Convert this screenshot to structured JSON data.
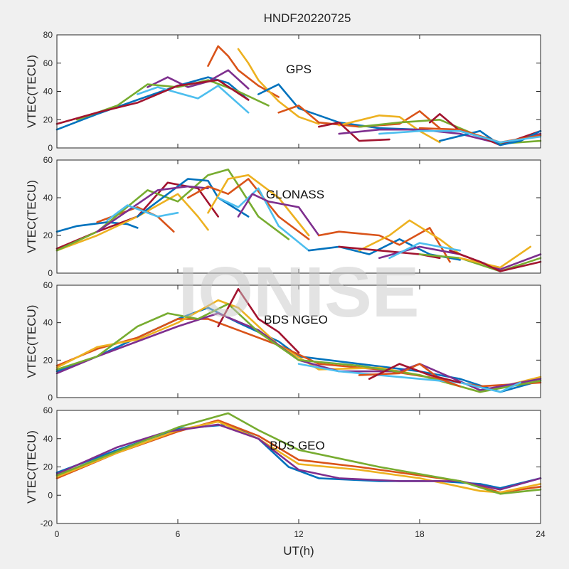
{
  "figure": {
    "title": "HNDF20220725",
    "xlabel": "UT(h)",
    "watermark": "IONISE",
    "ylabel": "VTEC(TECU)"
  },
  "colors": {
    "background": "#f0f0f0",
    "axes_bg": "#ffffff",
    "series": [
      "#0072BD",
      "#D95319",
      "#EDB120",
      "#7E2F8E",
      "#77AC30",
      "#4DBEEE",
      "#A2142F"
    ]
  },
  "chart_data": [
    {
      "type": "line",
      "label": "GPS",
      "ylabel": "VTEC(TECU)",
      "xlim": [
        0,
        24
      ],
      "ylim": [
        0,
        80
      ],
      "yticks": [
        0,
        20,
        40,
        60,
        80
      ],
      "xticks": [
        0,
        6,
        12,
        18,
        24
      ],
      "series": [
        {
          "color": "#0072BD",
          "x": [
            0,
            2,
            4,
            6,
            7.5,
            8.5,
            9.5
          ],
          "y": [
            13,
            24,
            34,
            44,
            50,
            46,
            34
          ]
        },
        {
          "color": "#D95319",
          "x": [
            7.5,
            8,
            8.5,
            9,
            10,
            11
          ],
          "y": [
            58,
            72,
            65,
            55,
            44,
            36
          ]
        },
        {
          "color": "#EDB120",
          "x": [
            9,
            9.5,
            10,
            11,
            12,
            13
          ],
          "y": [
            70,
            60,
            48,
            33,
            22,
            17
          ]
        },
        {
          "color": "#7E2F8E",
          "x": [
            4.5,
            5.5,
            6.5,
            7.5,
            8.5,
            9.5
          ],
          "y": [
            43,
            50,
            43,
            47,
            55,
            42
          ]
        },
        {
          "color": "#77AC30",
          "x": [
            1,
            3,
            4.5,
            6,
            7.5,
            9,
            10.5
          ],
          "y": [
            20,
            30,
            45,
            43,
            48,
            40,
            30
          ]
        },
        {
          "color": "#4DBEEE",
          "x": [
            4,
            5,
            6,
            7,
            8,
            9.5
          ],
          "y": [
            38,
            43,
            39,
            35,
            44,
            25
          ]
        },
        {
          "color": "#A2142F",
          "x": [
            0,
            2,
            4,
            6,
            8,
            9.5
          ],
          "y": [
            17,
            25,
            32,
            44,
            48,
            34
          ]
        },
        {
          "color": "#0072BD",
          "x": [
            10,
            11,
            12,
            14,
            16,
            18
          ],
          "y": [
            38,
            45,
            28,
            18,
            14,
            13
          ]
        },
        {
          "color": "#D95319",
          "x": [
            11,
            12,
            13,
            15,
            17,
            18,
            19
          ],
          "y": [
            25,
            30,
            18,
            15,
            17,
            26,
            14
          ]
        },
        {
          "color": "#EDB120",
          "x": [
            14,
            16,
            17,
            18,
            19
          ],
          "y": [
            16,
            23,
            22,
            12,
            4
          ]
        },
        {
          "color": "#A2142F",
          "x": [
            13,
            14,
            15,
            16.5
          ],
          "y": [
            15,
            18,
            5,
            6
          ]
        },
        {
          "color": "#7E2F8E",
          "x": [
            14,
            16,
            18,
            20,
            22,
            24
          ],
          "y": [
            10,
            13,
            13,
            10,
            3,
            10
          ]
        },
        {
          "color": "#77AC30",
          "x": [
            15,
            17,
            19,
            21,
            22,
            24
          ],
          "y": [
            15,
            18,
            20,
            8,
            3,
            5
          ]
        },
        {
          "color": "#A2142F",
          "x": [
            18.5,
            19,
            20,
            21,
            22,
            24
          ],
          "y": [
            18,
            24,
            12,
            8,
            2,
            12
          ]
        },
        {
          "color": "#0072BD",
          "x": [
            19,
            21,
            22,
            23,
            24
          ],
          "y": [
            5,
            12,
            2,
            5,
            12
          ]
        },
        {
          "color": "#D95319",
          "x": [
            18,
            20,
            22,
            24
          ],
          "y": [
            14,
            13,
            4,
            9
          ]
        },
        {
          "color": "#4DBEEE",
          "x": [
            16,
            18,
            20,
            22,
            24
          ],
          "y": [
            10,
            12,
            12,
            4,
            8
          ]
        }
      ]
    },
    {
      "type": "line",
      "label": "GLONASS",
      "ylabel": "VTEC(TECU)",
      "xlim": [
        0,
        24
      ],
      "ylim": [
        0,
        60
      ],
      "yticks": [
        0,
        20,
        40,
        60
      ],
      "xticks": [
        0,
        6,
        12,
        18,
        24
      ],
      "series": [
        {
          "color": "#0072BD",
          "x": [
            0,
            1,
            2.5,
            3.5,
            4
          ],
          "y": [
            22,
            25,
            27,
            26,
            24
          ]
        },
        {
          "color": "#D95319",
          "x": [
            2,
            4,
            5,
            5.8
          ],
          "y": [
            27,
            35,
            30,
            22
          ]
        },
        {
          "color": "#A2142F",
          "x": [
            0,
            2,
            4,
            5.5,
            7,
            8
          ],
          "y": [
            13,
            22,
            30,
            48,
            45,
            30
          ]
        },
        {
          "color": "#EDB120",
          "x": [
            0,
            2,
            4,
            6,
            7,
            7.5
          ],
          "y": [
            12,
            20,
            30,
            42,
            30,
            23
          ]
        },
        {
          "color": "#77AC30",
          "x": [
            0,
            2,
            4.5,
            6,
            7.5,
            8.5,
            10,
            11.5
          ],
          "y": [
            12,
            22,
            44,
            38,
            52,
            55,
            30,
            18
          ]
        },
        {
          "color": "#0072BD",
          "x": [
            4,
            5.5,
            6.5,
            7.5,
            8,
            9.5
          ],
          "y": [
            30,
            42,
            50,
            49,
            40,
            30
          ]
        },
        {
          "color": "#7E2F8E",
          "x": [
            2,
            3.5,
            5,
            6.5,
            7.5
          ],
          "y": [
            22,
            33,
            44,
            46,
            45
          ]
        },
        {
          "color": "#4DBEEE",
          "x": [
            2.5,
            3.5,
            5,
            6
          ],
          "y": [
            28,
            36,
            30,
            32
          ]
        },
        {
          "color": "#D95319",
          "x": [
            6.5,
            7.5,
            8.5,
            9.5,
            11,
            12.5
          ],
          "y": [
            40,
            46,
            42,
            50,
            30,
            18
          ]
        },
        {
          "color": "#EDB120",
          "x": [
            7.5,
            8.5,
            9.5,
            11,
            12.5
          ],
          "y": [
            32,
            50,
            52,
            40,
            20
          ]
        },
        {
          "color": "#4DBEEE",
          "x": [
            8,
            9,
            10,
            11,
            12.5
          ],
          "y": [
            40,
            35,
            45,
            25,
            12
          ]
        },
        {
          "color": "#7E2F8E",
          "x": [
            9,
            9.7,
            10.5,
            12,
            13
          ],
          "y": [
            30,
            42,
            38,
            35,
            20
          ]
        },
        {
          "color": "#0072BD",
          "x": [
            12.5,
            14,
            15.5,
            17,
            18.5,
            20
          ],
          "y": [
            12,
            14,
            10,
            18,
            10,
            7
          ]
        },
        {
          "color": "#D95319",
          "x": [
            13,
            14,
            16,
            17,
            18.5,
            19.5
          ],
          "y": [
            20,
            22,
            20,
            15,
            24,
            6
          ]
        },
        {
          "color": "#EDB120",
          "x": [
            15,
            16.5,
            17.5,
            19,
            20
          ],
          "y": [
            12,
            20,
            28,
            18,
            10
          ]
        },
        {
          "color": "#A2142F",
          "x": [
            14,
            16,
            18,
            19
          ],
          "y": [
            14,
            12,
            10,
            8
          ]
        },
        {
          "color": "#7E2F8E",
          "x": [
            16,
            18,
            20,
            22,
            24
          ],
          "y": [
            8,
            14,
            10,
            2,
            10
          ]
        },
        {
          "color": "#77AC30",
          "x": [
            18,
            20,
            22,
            24
          ],
          "y": [
            10,
            8,
            1,
            8
          ]
        },
        {
          "color": "#EDB120",
          "x": [
            20,
            22,
            23.5
          ],
          "y": [
            8,
            3,
            14
          ]
        },
        {
          "color": "#A2142F",
          "x": [
            19.5,
            21,
            22,
            24
          ],
          "y": [
            12,
            6,
            1,
            6
          ]
        },
        {
          "color": "#4DBEEE",
          "x": [
            16.5,
            18,
            20
          ],
          "y": [
            8,
            16,
            12
          ]
        }
      ]
    },
    {
      "type": "line",
      "label": "BDS NGEO",
      "ylabel": "VTEC(TECU)",
      "xlim": [
        0,
        24
      ],
      "ylim": [
        0,
        60
      ],
      "yticks": [
        0,
        20,
        40,
        60
      ],
      "xticks": [
        0,
        6,
        12,
        18,
        24
      ],
      "series": [
        {
          "color": "#0072BD",
          "x": [
            0,
            2,
            4,
            6,
            7.5,
            9,
            11,
            12,
            15,
            18,
            20,
            22,
            24
          ],
          "y": [
            14,
            22,
            32,
            42,
            48,
            40,
            30,
            22,
            18,
            14,
            10,
            3,
            9
          ]
        },
        {
          "color": "#D95319",
          "x": [
            0,
            2,
            4,
            6,
            7.5,
            9,
            11,
            13,
            16,
            19,
            21,
            24
          ],
          "y": [
            17,
            26,
            32,
            42,
            42,
            36,
            28,
            18,
            15,
            10,
            6,
            8
          ]
        },
        {
          "color": "#EDB120",
          "x": [
            0,
            2,
            4,
            6,
            8,
            9,
            11,
            13,
            16,
            18,
            21,
            24
          ],
          "y": [
            16,
            27,
            31,
            40,
            52,
            48,
            28,
            15,
            16,
            12,
            3,
            11
          ]
        },
        {
          "color": "#7E2F8E",
          "x": [
            0,
            2,
            4,
            6,
            8,
            10,
            12,
            14,
            17,
            18,
            21,
            24
          ],
          "y": [
            13,
            22,
            30,
            38,
            45,
            36,
            20,
            14,
            14,
            18,
            4,
            10
          ]
        },
        {
          "color": "#77AC30",
          "x": [
            0,
            2,
            4,
            5.5,
            7,
            8.5,
            10,
            12,
            15,
            18,
            21,
            24
          ],
          "y": [
            15,
            22,
            38,
            45,
            42,
            50,
            35,
            20,
            17,
            12,
            3,
            9
          ]
        },
        {
          "color": "#A2142F",
          "x": [
            8,
            9,
            10,
            11,
            12
          ],
          "y": [
            38,
            58,
            42,
            35,
            24
          ]
        },
        {
          "color": "#4DBEEE",
          "x": [
            12,
            14,
            16,
            18,
            20,
            22,
            23
          ],
          "y": [
            18,
            14,
            12,
            10,
            8,
            3,
            8
          ]
        },
        {
          "color": "#D95319",
          "x": [
            15,
            17,
            18,
            19,
            20
          ],
          "y": [
            12,
            13,
            18,
            10,
            6
          ]
        },
        {
          "color": "#A2142F",
          "x": [
            15.5,
            17,
            18.5,
            20
          ],
          "y": [
            10,
            18,
            12,
            8
          ]
        }
      ]
    },
    {
      "type": "line",
      "label": "BDS GEO",
      "ylabel": "VTEC(TECU)",
      "xlim": [
        0,
        24
      ],
      "ylim": [
        -20,
        60
      ],
      "yticks": [
        -20,
        0,
        20,
        40,
        60
      ],
      "xticks": [
        0,
        6,
        12,
        18,
        24
      ],
      "series": [
        {
          "color": "#0072BD",
          "x": [
            0,
            3,
            6,
            8.5,
            10,
            11.5,
            13,
            16,
            19,
            21,
            22,
            24
          ],
          "y": [
            16,
            32,
            47,
            50,
            40,
            20,
            12,
            10,
            10,
            8,
            5,
            12
          ]
        },
        {
          "color": "#D95319",
          "x": [
            0,
            3,
            6,
            8,
            10,
            12,
            15,
            18,
            20,
            22,
            24
          ],
          "y": [
            12,
            30,
            45,
            53,
            42,
            25,
            20,
            14,
            10,
            2,
            6
          ]
        },
        {
          "color": "#EDB120",
          "x": [
            0,
            3,
            6,
            8,
            10,
            12,
            15,
            18,
            21,
            22,
            24
          ],
          "y": [
            13,
            30,
            46,
            52,
            40,
            22,
            18,
            12,
            3,
            2,
            8
          ]
        },
        {
          "color": "#7E2F8E",
          "x": [
            0,
            3,
            5.5,
            8,
            10,
            12,
            14,
            17,
            20,
            22,
            24
          ],
          "y": [
            15,
            34,
            45,
            50,
            40,
            18,
            12,
            10,
            10,
            4,
            12
          ]
        },
        {
          "color": "#77AC30",
          "x": [
            0,
            3,
            6,
            8.5,
            10,
            12,
            16,
            20,
            22,
            24
          ],
          "y": [
            14,
            31,
            48,
            58,
            46,
            32,
            20,
            10,
            1,
            4
          ]
        }
      ]
    }
  ]
}
